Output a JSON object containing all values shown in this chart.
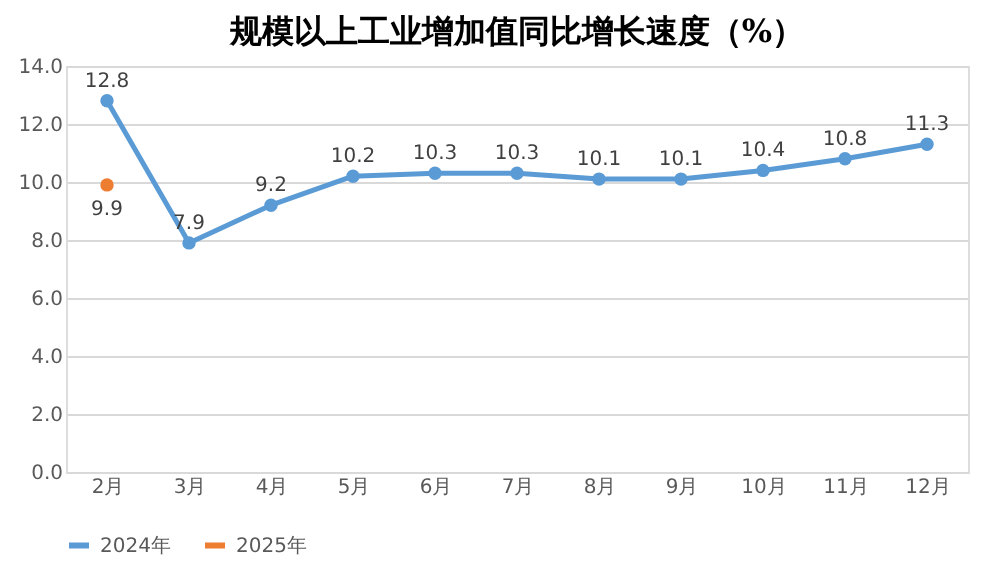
{
  "chart_data": {
    "type": "line",
    "title": "规模以上工业增加值同比增长速度（%）",
    "categories": [
      "2月",
      "3月",
      "4月",
      "5月",
      "6月",
      "7月",
      "8月",
      "9月",
      "10月",
      "11月",
      "12月"
    ],
    "series": [
      {
        "name": "2024年",
        "color": "#5b9bd5",
        "values": [
          12.8,
          7.9,
          9.2,
          10.2,
          10.3,
          10.3,
          10.1,
          10.1,
          10.4,
          10.8,
          11.3
        ]
      },
      {
        "name": "2025年",
        "color": "#ed7d31",
        "values": [
          9.9,
          null,
          null,
          null,
          null,
          null,
          null,
          null,
          null,
          null,
          null
        ]
      }
    ],
    "ylim": [
      0,
      14
    ],
    "yticks": [
      {
        "value": 0,
        "label": "0.0"
      },
      {
        "value": 2,
        "label": "2.0"
      },
      {
        "value": 4,
        "label": "4.0"
      },
      {
        "value": 6,
        "label": "6.0"
      },
      {
        "value": 8,
        "label": "8.0"
      },
      {
        "value": 10,
        "label": "10.0"
      },
      {
        "value": 12,
        "label": "12.0"
      },
      {
        "value": 14,
        "label": "14.0"
      }
    ],
    "grid": "y",
    "legend": "bottom",
    "marker": "circle",
    "line_style": "solid",
    "data_labels": true
  }
}
